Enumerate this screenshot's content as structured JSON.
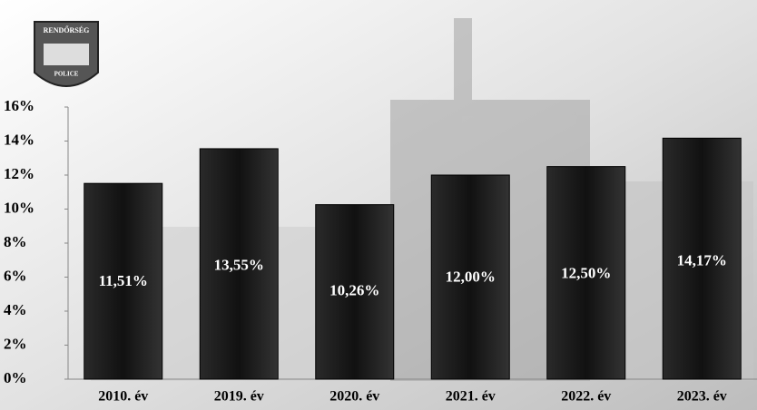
{
  "chart_data": {
    "type": "bar",
    "badge": {
      "top": "RENDŐRSÉG",
      "bottom": "POLICE"
    },
    "categories": [
      "2010. év",
      "2019. év",
      "2020. év",
      "2021. év",
      "2022. év",
      "2023. év"
    ],
    "values": [
      11.51,
      13.55,
      10.26,
      12.0,
      12.5,
      14.17
    ],
    "value_labels": [
      "11,51%",
      "13,55%",
      "10,26%",
      "12,00%",
      "12,50%",
      "14,17%"
    ],
    "color": "#111111",
    "ylim": [
      0,
      16
    ],
    "yticks": [
      {
        "value": 0,
        "label": "0%"
      },
      {
        "value": 2,
        "label": "2%"
      },
      {
        "value": 4,
        "label": "4%"
      },
      {
        "value": 6,
        "label": "6%"
      },
      {
        "value": 8,
        "label": "8%"
      },
      {
        "value": 10,
        "label": "10%"
      },
      {
        "value": 12,
        "label": "12%"
      },
      {
        "value": 14,
        "label": "14%"
      },
      {
        "value": 16,
        "label": "16%"
      }
    ]
  }
}
